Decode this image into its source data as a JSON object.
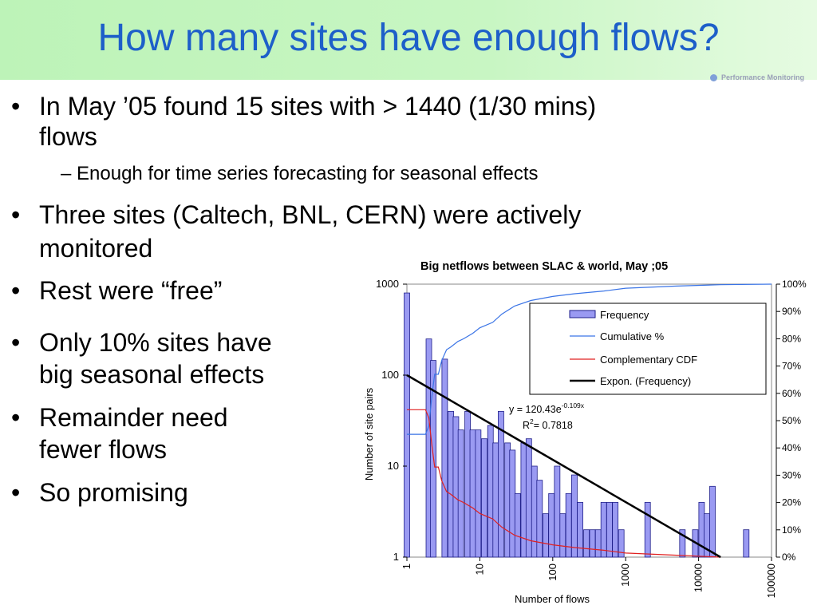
{
  "title": "How many sites have enough flows?",
  "bullets": [
    {
      "line1": "In May ’05 found 15 sites with > 1440 (1/30 mins)",
      "line2": "flows"
    },
    {
      "sub": "– Enough for time series forecasting for seasonal effects"
    },
    {
      "line1": "Three sites (Caltech, BNL, CERN) were actively",
      "line2": "monitored"
    },
    {
      "line1": "Rest were “free”"
    },
    {
      "line1": "Only 10% sites have",
      "line2": "big seasonal effects"
    },
    {
      "line1": "Remainder need",
      "line2": "fewer flows"
    },
    {
      "line1": "So promising"
    }
  ],
  "logo_text": "Performance Monitoring",
  "chart_data": {
    "type": "bar",
    "title": "Big netflows between SLAC & world, May ;05",
    "xlabel": "Number of flows",
    "ylabel": "Number of site pairs",
    "x_scale": "log",
    "y_scale": "log",
    "xlim": [
      1,
      100000
    ],
    "ylim": [
      1,
      1000
    ],
    "y2lim": [
      0,
      100
    ],
    "x_tick_labels": [
      "1",
      "10",
      "100",
      "1000",
      "10000",
      "100000"
    ],
    "y_tick_labels": [
      "1",
      "10",
      "100",
      "1000"
    ],
    "y2_tick_labels": [
      "0%",
      "10%",
      "20%",
      "30%",
      "40%",
      "50%",
      "60%",
      "70%",
      "80%",
      "90%",
      "100%"
    ],
    "legend": [
      "Frequency",
      "Cumulative %",
      "Complementary CDF",
      "Expon. (Frequency)"
    ],
    "legend_position": "upper-right",
    "annotation": {
      "equation": "y = 120.43e",
      "exponent": "-0.109x",
      "r2_label": "R",
      "r2_value": "= 0.7818"
    },
    "colors": {
      "bars": "#9a9af2",
      "bar_edge": "#1f1f8a",
      "cumulative": "#3a74e6",
      "ccdf": "#e02020",
      "trend": "#000000"
    },
    "bins": [
      {
        "x": 1.0,
        "value": 800
      },
      {
        "x": 1.6,
        "value": 1
      },
      {
        "x": 2.0,
        "value": 250
      },
      {
        "x": 2.3,
        "value": 145
      },
      {
        "x": 2.7,
        "value": 1
      },
      {
        "x": 3.3,
        "value": 150
      },
      {
        "x": 4.0,
        "value": 40
      },
      {
        "x": 4.7,
        "value": 35
      },
      {
        "x": 5.5,
        "value": 25
      },
      {
        "x": 6.8,
        "value": 40
      },
      {
        "x": 8.0,
        "value": 25
      },
      {
        "x": 9.5,
        "value": 25
      },
      {
        "x": 11.5,
        "value": 20
      },
      {
        "x": 14.0,
        "value": 28
      },
      {
        "x": 16.5,
        "value": 18
      },
      {
        "x": 19.5,
        "value": 40
      },
      {
        "x": 24.0,
        "value": 18
      },
      {
        "x": 28.0,
        "value": 15
      },
      {
        "x": 33.0,
        "value": 5
      },
      {
        "x": 40.0,
        "value": 18
      },
      {
        "x": 47.0,
        "value": 20
      },
      {
        "x": 56.0,
        "value": 10
      },
      {
        "x": 66.0,
        "value": 7
      },
      {
        "x": 80.0,
        "value": 3
      },
      {
        "x": 96.0,
        "value": 5
      },
      {
        "x": 115.0,
        "value": 10
      },
      {
        "x": 137.0,
        "value": 3
      },
      {
        "x": 165.0,
        "value": 5
      },
      {
        "x": 198.0,
        "value": 8
      },
      {
        "x": 237.0,
        "value": 4
      },
      {
        "x": 290.0,
        "value": 2
      },
      {
        "x": 350.0,
        "value": 2
      },
      {
        "x": 420.0,
        "value": 2
      },
      {
        "x": 500.0,
        "value": 4
      },
      {
        "x": 600.0,
        "value": 4
      },
      {
        "x": 720.0,
        "value": 4
      },
      {
        "x": 870.0,
        "value": 2
      },
      {
        "x": 2000.0,
        "value": 4
      },
      {
        "x": 6000.0,
        "value": 2
      },
      {
        "x": 9000.0,
        "value": 2
      },
      {
        "x": 11000.0,
        "value": 4
      },
      {
        "x": 13000.0,
        "value": 3
      },
      {
        "x": 15500.0,
        "value": 6
      },
      {
        "x": 45000.0,
        "value": 2
      }
    ],
    "series": [
      {
        "name": "Cumulative %",
        "axis": "right",
        "x": [
          1.0,
          1.5,
          1.8,
          2.0,
          2.2,
          2.4,
          2.7,
          3.0,
          3.5,
          4.0,
          5.0,
          6.0,
          8.0,
          10.0,
          15.0,
          20.0,
          30.0,
          50.0,
          100.0,
          200.0,
          500.0,
          1000.0,
          5000.0,
          20000.0,
          100000.0
        ],
        "y": [
          45,
          45,
          45,
          48,
          59,
          67,
          67,
          72,
          76,
          77,
          79,
          80,
          82,
          84,
          86,
          89,
          92,
          94,
          95.5,
          96.5,
          97.5,
          98.5,
          99.3,
          99.8,
          100
        ]
      },
      {
        "name": "Complementary CDF",
        "axis": "right",
        "x": [
          1.0,
          1.5,
          1.8,
          2.0,
          2.2,
          2.4,
          2.7,
          3.0,
          3.5,
          4.0,
          5.0,
          6.0,
          8.0,
          10.0,
          15.0,
          20.0,
          30.0,
          50.0,
          100.0,
          200.0,
          500.0,
          1000.0,
          5000.0,
          20000.0
        ],
        "y": [
          54,
          54,
          54,
          51,
          41,
          33,
          33,
          28,
          24,
          23,
          21,
          20,
          18,
          16,
          14,
          11,
          8,
          6,
          4.5,
          3.5,
          2.5,
          1.5,
          0.7,
          0
        ]
      }
    ],
    "trendline": {
      "name": "Expon. (Frequency)",
      "x": [
        1,
        20000
      ],
      "y": [
        100,
        1
      ]
    }
  }
}
